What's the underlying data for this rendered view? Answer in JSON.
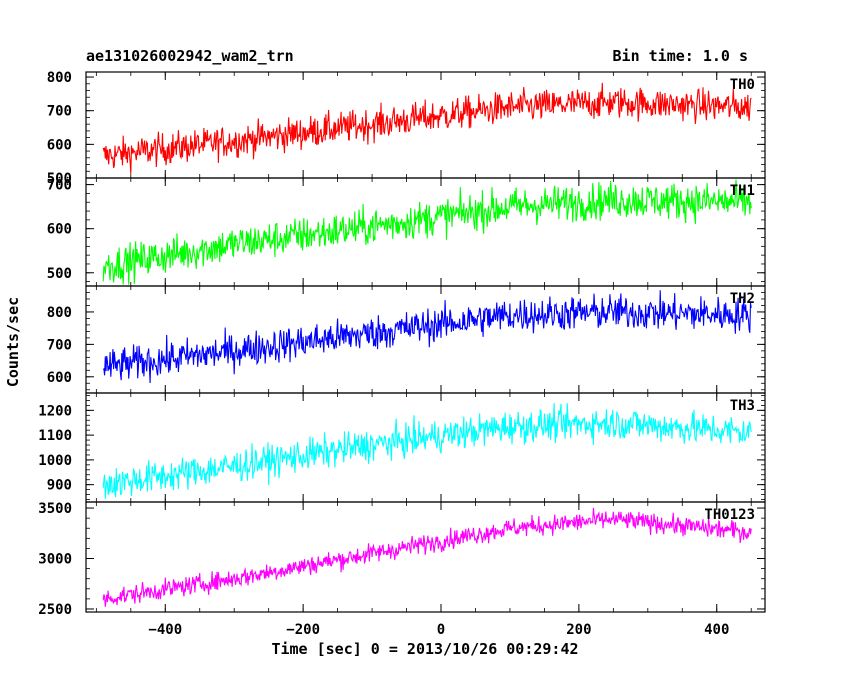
{
  "header": {
    "title": "ae131026002942_wam2_trn",
    "bin_time": "Bin time: 1.0 s"
  },
  "chart_data": {
    "type": "line",
    "xlabel": "Time [sec] 0 = 2013/10/26 00:29:42",
    "ylabel": "Counts/sec",
    "xlim": [
      -515,
      470
    ],
    "x_ticks": [
      -400,
      -200,
      0,
      200,
      400
    ],
    "x_range": [
      -490,
      450
    ],
    "noise_amplitude_note": "1.0 s bins",
    "panels": [
      {
        "name": "TH0",
        "color": "#ff0000",
        "ylim": [
          500,
          815
        ],
        "y_ticks": [
          500,
          600,
          700,
          800
        ],
        "trend": [
          [
            -490,
            565
          ],
          [
            -300,
            610
          ],
          [
            -100,
            660
          ],
          [
            100,
            710
          ],
          [
            250,
            725
          ],
          [
            450,
            710
          ]
        ],
        "noise": 40
      },
      {
        "name": "TH1",
        "color": "#00ff00",
        "ylim": [
          470,
          715
        ],
        "y_ticks": [
          500,
          600,
          700
        ],
        "trend": [
          [
            -490,
            515
          ],
          [
            -300,
            565
          ],
          [
            -100,
            605
          ],
          [
            100,
            650
          ],
          [
            250,
            665
          ],
          [
            450,
            660
          ]
        ],
        "noise": 35
      },
      {
        "name": "TH2",
        "color": "#0000ff",
        "ylim": [
          550,
          880
        ],
        "y_ticks": [
          600,
          700,
          800
        ],
        "trend": [
          [
            -490,
            630
          ],
          [
            -300,
            680
          ],
          [
            -100,
            735
          ],
          [
            100,
            790
          ],
          [
            250,
            800
          ],
          [
            450,
            790
          ]
        ],
        "noise": 45
      },
      {
        "name": "TH3",
        "color": "#00ffff",
        "ylim": [
          830,
          1270
        ],
        "y_ticks": [
          900,
          1000,
          1100,
          1200
        ],
        "trend": [
          [
            -490,
            900
          ],
          [
            -300,
            975
          ],
          [
            -100,
            1060
          ],
          [
            100,
            1135
          ],
          [
            250,
            1150
          ],
          [
            450,
            1110
          ]
        ],
        "noise": 55
      },
      {
        "name": "TH0123",
        "color": "#ff00ff",
        "ylim": [
          2470,
          3560
        ],
        "y_ticks": [
          2500,
          3000,
          3500
        ],
        "trend": [
          [
            -490,
            2600
          ],
          [
            -300,
            2800
          ],
          [
            -100,
            3050
          ],
          [
            100,
            3300
          ],
          [
            250,
            3390
          ],
          [
            450,
            3260
          ]
        ],
        "noise": 80
      }
    ]
  }
}
